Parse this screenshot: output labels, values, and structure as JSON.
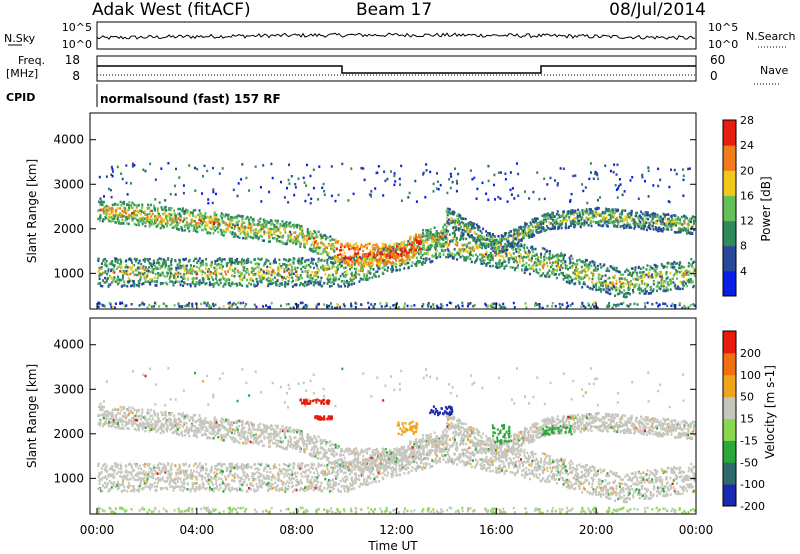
{
  "header": {
    "radar": "Adak West (fitACF)",
    "beam": "Beam 17",
    "date": "08/Jul/2014"
  },
  "top_panels": {
    "nsky_label": "N.Sky",
    "nsky_ticks": [
      "10^5",
      "10^0"
    ],
    "nsearch_label": "N.Search",
    "nsearch_ticks": [
      "10^5",
      "10^0"
    ],
    "freq_label": "Freq.",
    "freq_unit": "[MHz]",
    "freq_ticks": [
      "18",
      "8"
    ],
    "nave_label": "Nave",
    "nave_ticks": [
      "60",
      "0"
    ],
    "cpid_label": "CPID",
    "cpid_text": "normalsound (fast) 157 RF"
  },
  "chart_data": [
    {
      "type": "heatmap",
      "name": "power",
      "ylabel": "Slant Range [km]",
      "ylim": [
        200,
        4600
      ],
      "yticks": [
        "1000",
        "2000",
        "3000",
        "4000"
      ],
      "xlim": [
        0,
        24
      ],
      "colorbar_label": "Power [dB]",
      "colorbar_ticks": [
        "4",
        "8",
        "12",
        "16",
        "20",
        "24",
        "28"
      ],
      "colors": [
        "#0a1ee6",
        "#28489a",
        "#2e8a5a",
        "#66c05a",
        "#f2c81a",
        "#f07c1a",
        "#e81e0e"
      ],
      "bands": [
        {
          "t": [
            0,
            10,
            12,
            14,
            18,
            21,
            24
          ],
          "r": [
            1050,
            1050,
            1400,
            1700,
            1250,
            800,
            1050
          ],
          "w": 320,
          "level": 0.55
        },
        {
          "t": [
            0,
            4,
            8,
            10,
            12,
            13,
            14
          ],
          "r": [
            2450,
            2200,
            1900,
            1450,
            1450,
            1750,
            1900
          ],
          "w": 250,
          "level": 0.7
        },
        {
          "t": [
            14,
            16,
            18,
            20,
            24
          ],
          "r": [
            2300,
            1650,
            2200,
            2300,
            2100
          ],
          "w": 200,
          "level": 0.45
        }
      ]
    },
    {
      "type": "heatmap",
      "name": "velocity",
      "ylabel": "Slant Range [km]",
      "ylim": [
        200,
        4600
      ],
      "yticks": [
        "1000",
        "2000",
        "3000",
        "4000"
      ],
      "xlim": [
        0,
        24
      ],
      "xticks": [
        "00:00",
        "04:00",
        "08:00",
        "12:00",
        "16:00",
        "20:00",
        "00:00"
      ],
      "xlabel": "Time UT",
      "colorbar_label": "Velocity [m s-1]",
      "colorbar_ticks": [
        "200",
        "100",
        "50",
        "15",
        "-15",
        "-50",
        "-100",
        "-200"
      ],
      "colors": [
        "#1a2ab0",
        "#2e6a6a",
        "#2aa83a",
        "#8ad850",
        "#c6c6be",
        "#f0a41a",
        "#f07010",
        "#e81a0a"
      ]
    }
  ]
}
